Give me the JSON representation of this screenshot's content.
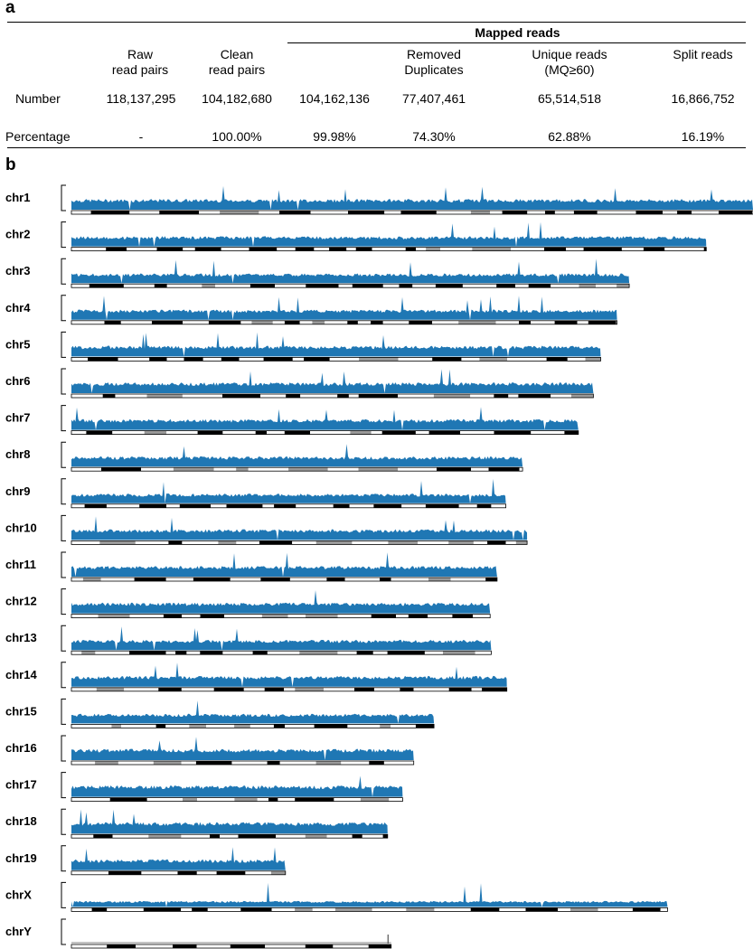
{
  "panel_a": {
    "label": "a"
  },
  "panel_b": {
    "label": "b"
  },
  "table": {
    "group_header": "Mapped reads",
    "columns": [
      {
        "line1": "",
        "line2": ""
      },
      {
        "line1": "Raw",
        "line2": "read pairs"
      },
      {
        "line1": "Clean",
        "line2": "read pairs"
      },
      {
        "line1": "",
        "line2": ""
      },
      {
        "line1": "Removed",
        "line2": "Duplicates"
      },
      {
        "line1": "Unique reads",
        "line2": "(MQ≥60)"
      },
      {
        "line1": "Split reads",
        "line2": ""
      }
    ],
    "rows": [
      {
        "label": "Number",
        "values": [
          "118,137,295",
          "104,182,680",
          "104,162,136",
          "77,407,461",
          "65,514,518",
          "16,866,752"
        ]
      },
      {
        "label": "Percentage",
        "values": [
          "-",
          "100.00%",
          "99.98%",
          "74.30%",
          "62.88%",
          "16.19%"
        ]
      }
    ]
  },
  "chart_data": {
    "type": "area",
    "colors": {
      "coverage": "#1f77b4",
      "band_dark": "#000000",
      "band_light": "#ffffff",
      "band_gray": "#9a9a9a"
    },
    "chromosomes": [
      {
        "name": "chr1",
        "length": 195.5,
        "level": 0.4
      },
      {
        "name": "chr2",
        "length": 182.1,
        "level": 0.38
      },
      {
        "name": "chr3",
        "length": 160.0,
        "level": 0.36
      },
      {
        "name": "chr4",
        "length": 156.5,
        "level": 0.38
      },
      {
        "name": "chr5",
        "length": 151.8,
        "level": 0.4
      },
      {
        "name": "chr6",
        "length": 149.7,
        "level": 0.4
      },
      {
        "name": "chr7",
        "length": 145.4,
        "level": 0.4
      },
      {
        "name": "chr8",
        "length": 129.4,
        "level": 0.38
      },
      {
        "name": "chr9",
        "length": 124.6,
        "level": 0.36
      },
      {
        "name": "chr10",
        "length": 130.7,
        "level": 0.4
      },
      {
        "name": "chr11",
        "length": 122.1,
        "level": 0.4
      },
      {
        "name": "chr12",
        "length": 120.1,
        "level": 0.4
      },
      {
        "name": "chr13",
        "length": 120.4,
        "level": 0.38
      },
      {
        "name": "chr14",
        "length": 124.9,
        "level": 0.4
      },
      {
        "name": "chr15",
        "length": 104.0,
        "level": 0.36
      },
      {
        "name": "chr16",
        "length": 98.2,
        "level": 0.42
      },
      {
        "name": "chr17",
        "length": 95.0,
        "level": 0.42
      },
      {
        "name": "chr18",
        "length": 90.7,
        "level": 0.42
      },
      {
        "name": "chr19",
        "length": 61.4,
        "level": 0.4
      },
      {
        "name": "chrX",
        "length": 171.0,
        "level": 0.22
      },
      {
        "name": "chrY",
        "length": 91.7,
        "level": 0.0
      }
    ]
  }
}
